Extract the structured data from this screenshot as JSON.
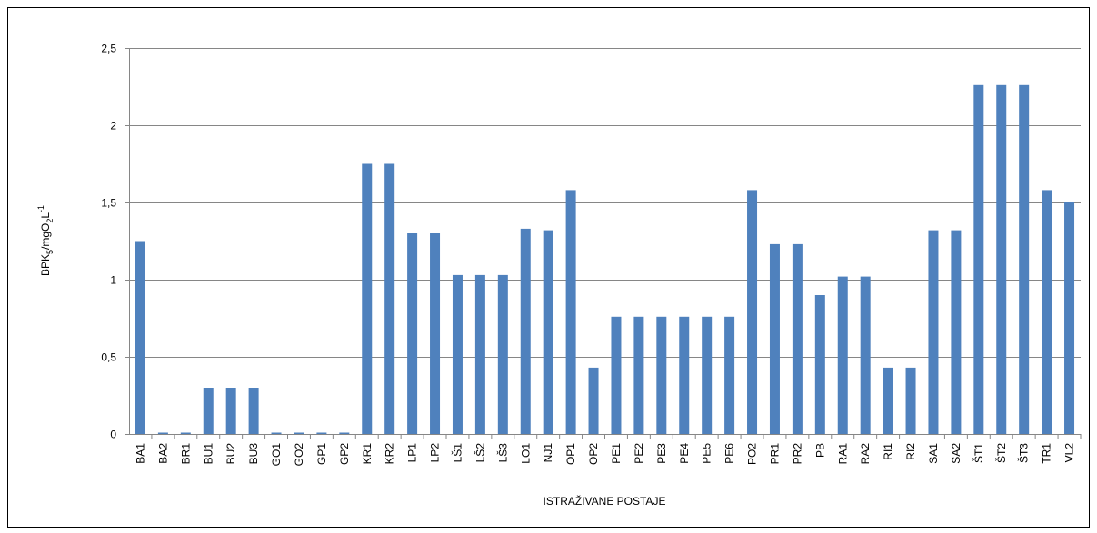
{
  "chart_data": {
    "type": "bar",
    "ylabel_parts": [
      "BPK",
      "5",
      "/mgO",
      "2",
      "L",
      "-1"
    ],
    "xlabel": "ISTRAŽIVANE POSTAJE",
    "categories": [
      "BA1",
      "BA2",
      "BR1",
      "BU1",
      "BU2",
      "BU3",
      "GO1",
      "GO2",
      "GP1",
      "GP2",
      "KR1",
      "KR2",
      "LP1",
      "LP2",
      "LŠ1",
      "LŠ2",
      "LŠ3",
      "LO1",
      "NJ1",
      "OP1",
      "OP2",
      "PE1",
      "PE2",
      "PE3",
      "PE4",
      "PE5",
      "PE6",
      "PO2",
      "PR1",
      "PR2",
      "PB",
      "RA1",
      "RA2",
      "RI1",
      "RI2",
      "SA1",
      "SA2",
      "ŠT1",
      "ŠT2",
      "ŠT3",
      "TR1",
      "VL2"
    ],
    "values": [
      1.25,
      0,
      0,
      0.3,
      0.3,
      0.3,
      0,
      0,
      0,
      0,
      1.75,
      1.75,
      1.3,
      1.3,
      1.03,
      1.03,
      1.03,
      1.33,
      1.32,
      1.58,
      0.43,
      0.76,
      0.76,
      0.76,
      0.76,
      0.76,
      0.76,
      1.58,
      1.23,
      1.23,
      0.9,
      1.02,
      1.02,
      0.43,
      0.43,
      1.32,
      1.32,
      2.26,
      2.26,
      2.26,
      1.58,
      1.5
    ],
    "color": "#4f81bd",
    "ylim": [
      0,
      2.5
    ],
    "yticks": [
      0,
      {
        "value": 0.5,
        "label": "0,5"
      },
      1,
      {
        "value": 1.5,
        "label": "1,5"
      },
      2,
      {
        "value": 2.5,
        "label": "2,5"
      }
    ],
    "grid": true
  }
}
